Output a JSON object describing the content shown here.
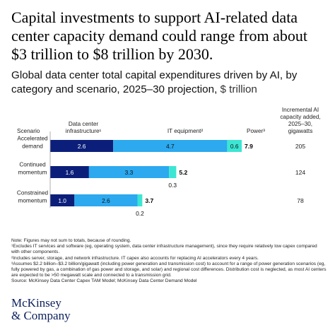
{
  "headline": "Capital investments to support AI-related data center capacity demand could range from about $3 trillion to $8 trillion by 2030.",
  "subtitle": {
    "text": "Global data center total capital expenditures driven by AI, by category and scenario, 2025–30 projection,",
    "unit": " $ trillion"
  },
  "chart_data": {
    "type": "bar",
    "orientation": "horizontal",
    "stacked": true,
    "scenario_header": "Scenario",
    "categories": [
      "Accelerated demand",
      "Continued momentum",
      "Constrained momentum"
    ],
    "category_lines": [
      [
        "Accelerated",
        "demand"
      ],
      [
        "Continued",
        "momentum"
      ],
      [
        "Constrained",
        "momentum"
      ]
    ],
    "series": [
      {
        "name": "Data center infrastructure¹",
        "header_lines": [
          "Data center",
          "infrastructure¹"
        ],
        "color": "#0b1f7a",
        "values": [
          2.6,
          1.6,
          1.0
        ],
        "labels": [
          "2.6",
          "1.6",
          "1.0"
        ]
      },
      {
        "name": "IT equipment²",
        "header_lines": [
          "IT equipment²"
        ],
        "color": "#2ca9ef",
        "values": [
          4.7,
          3.3,
          2.6
        ],
        "labels": [
          "4.7",
          "3.3",
          "2.6"
        ]
      },
      {
        "name": "Power³",
        "header_lines": [
          "Power³"
        ],
        "color": "#3ce6d3",
        "values": [
          0.6,
          0.3,
          0.2
        ],
        "labels": [
          "0.6",
          "0.3",
          "0.2"
        ]
      }
    ],
    "totals": [
      "7.9",
      "5.2",
      "3.7"
    ],
    "incremental_header": [
      "Incremental AI",
      "capacity added,",
      "2025–30,",
      "gigawatts"
    ],
    "incremental_capacity": [
      205,
      124,
      78
    ],
    "xlim": [
      0,
      7.9
    ],
    "grid": false,
    "legend": "column headers above bars"
  },
  "notes": [
    "Note: Figures may not sum to totals, because of rounding.",
    "¹Excludes IT services and software (eg, operating system, data center infrastructure management), since they require relatively low capex compared with other components.",
    "²Includes server, storage, and network infrastructure. IT capex also accounts for replacing AI accelerators every 4 years.",
    "³Assumes $2.2 billion–$3.2 billion/gigawatt (including power generation and transmission cost) to account for a range of power generation scenarios (eg, fully powered by gas, a combination of gas power and storage, and solar) and regional cost differences. Distribution cost is neglected, as most AI centers are expected to be >50 megawatt scale and connected to a transmission grid.",
    "Source: McKinsey Data Center Capex TAM Model; McKinsey Data Center Demand Model"
  ],
  "brand": [
    "McKinsey",
    "& Company"
  ]
}
